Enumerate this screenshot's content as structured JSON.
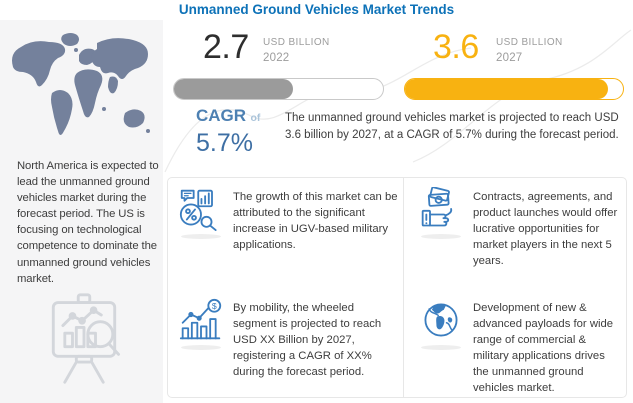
{
  "title": "Unmanned Ground Vehicles Market Trends",
  "chart_data": {
    "type": "bar",
    "categories": [
      "2022",
      "2027"
    ],
    "values": [
      2.7,
      3.6
    ],
    "unit": "USD Billion",
    "title": "Unmanned Ground Vehicles Market Trends",
    "cagr_percent": 5.7,
    "bar_fill_percent": [
      57,
      93
    ],
    "annotations": [
      "CAGR of 5.7%"
    ]
  },
  "left_panel": {
    "region_text": "North America is expected to lead the unmanned ground vehicles market during the forecast period. The US is focusing on technological competence to dominate the unmanned ground vehicles market."
  },
  "stats": {
    "start": {
      "value": "2.7",
      "unit": "USD BILLION",
      "year": "2022",
      "fill_percent": 57
    },
    "end": {
      "value": "3.6",
      "unit": "USD BILLION",
      "year": "2027",
      "fill_percent": 93
    },
    "cagr": {
      "label": "CAGR",
      "of_label": "of",
      "value": "5.7%"
    },
    "projection_text": "The unmanned ground vehicles market is projected to reach USD 3.6 billion by 2027, at a CAGR of 5.7% during the forecast period."
  },
  "insights": [
    {
      "icon": "market-growth-icon",
      "text": "The growth of this market can be attributed to the significant increase in UGV-based military applications."
    },
    {
      "icon": "money-hand-icon",
      "text": "Contracts, agreements, and product launches would offer lucrative opportunities for market players in the next 5 years."
    },
    {
      "icon": "chart-dollar-icon",
      "text": "By mobility, the wheeled segment is projected to reach USD XX Billion by 2027, registering a CAGR of XX% during the forecast period."
    },
    {
      "icon": "globe-icon",
      "text": "Development of new & advanced payloads for wide range of commercial & military applications drives the unmanned ground vehicles market."
    }
  ],
  "colors": {
    "title_blue": "#0d72b8",
    "cagr_blue": "#4d80b2",
    "cagr_of_blue": "#aac4da",
    "cagr_value_blue": "#3e6fa4",
    "icon_blue": "#3a7dbf",
    "accent_yellow": "#f8b211",
    "bar_gray": "#9b9b9b",
    "bar_border_gray": "#c9c9c9",
    "text_dark": "#3d3d3d",
    "muted_gray": "#9c9c9c",
    "panel_bg": "#f5f5f6",
    "map_gray": "#74819c",
    "line_light": "#e7e7e7",
    "easel_gray": "#d3d6db"
  }
}
